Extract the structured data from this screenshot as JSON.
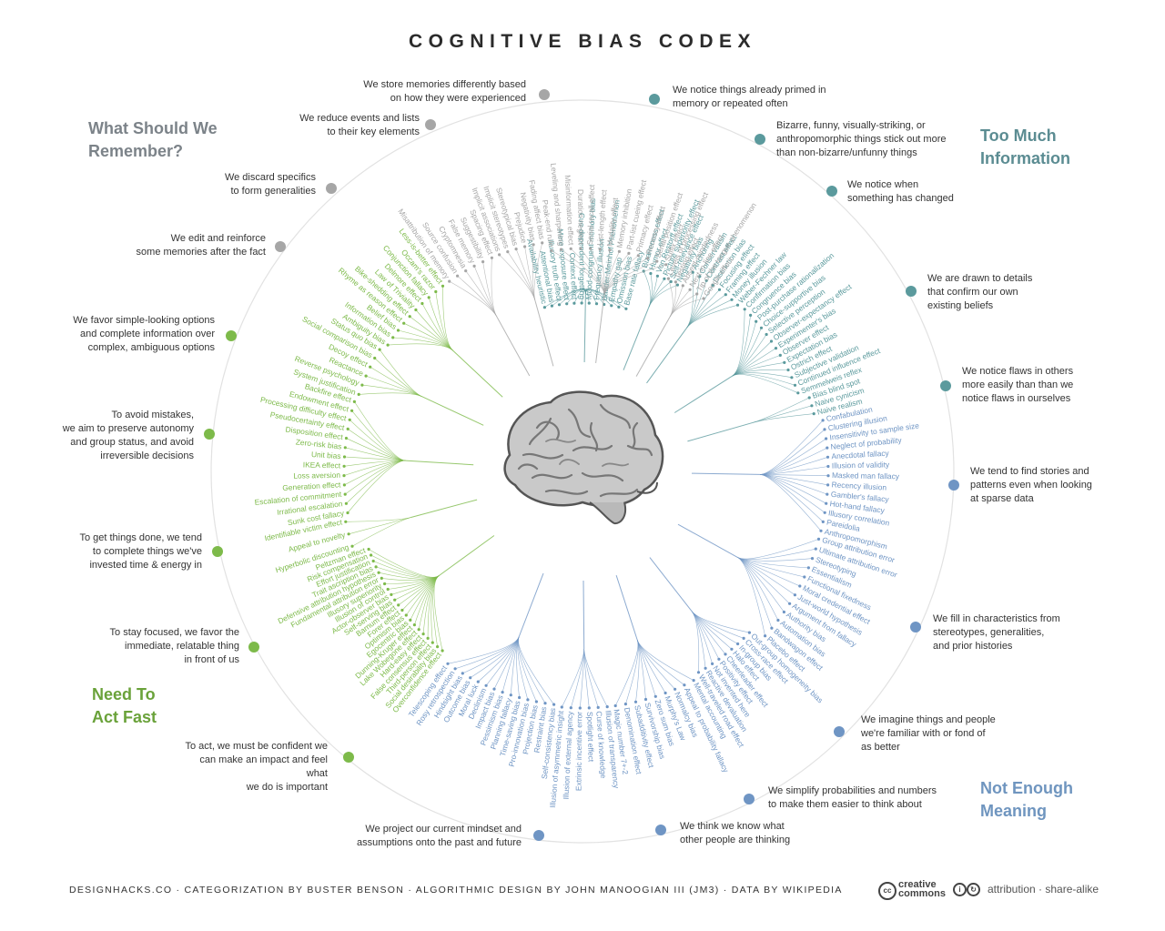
{
  "title": "COGNITIVE BIAS CODEX",
  "quadrant_titles": {
    "remember": "What Should We\nRemember?",
    "too_much": "Too Much\nInformation",
    "act_fast": "Need To\nAct Fast",
    "meaning": "Not Enough\nMeaning"
  },
  "colors": {
    "remember": "#a6a6a6",
    "too_much": "#5b9a9d",
    "meaning": "#6f95c4",
    "act_fast": "#7dba4a"
  },
  "groups": [
    {
      "caption": "We notice things already primed in\nmemory or repeated often",
      "quadrant": "too_much",
      "items": [
        "Availability heuristic",
        "Attentional bias",
        "Illusory truth effect",
        "Mere exposure effect",
        "Context effect",
        "Cue-dependent forgetting",
        "Mood-congruent memory bias",
        "Frequency illusion",
        "Baader-Meinhof Phenomenon",
        "Empathy gap",
        "Omission bias",
        "Base rate fallacy"
      ]
    },
    {
      "caption": "Bizarre, funny, visually-striking, or\nanthropomorphic things stick out more\nthan non-bizarre/unfunny things",
      "quadrant": "too_much",
      "items": [
        "Bizarreness effect",
        "Humor effect",
        "Von Restorff effect",
        "Picture superiority effect",
        "Self-relevance effect",
        "Negativity bias"
      ]
    },
    {
      "caption": "We notice when\nsomething has changed",
      "quadrant": "too_much",
      "items": [
        "Anchoring",
        "Conservatism",
        "Contrast effect",
        "Distinction bias",
        "Focusing effect",
        "Framing effect",
        "Money illusion",
        "Weber-Fechner law"
      ]
    },
    {
      "caption": "We are drawn to details\nthat confirm our own\nexisting beliefs",
      "quadrant": "too_much",
      "items": [
        "Confirmation bias",
        "Congruence bias",
        "Post-purchase rationalization",
        "Choice-supportive bias",
        "Selective perception",
        "Observer-expectancy effect",
        "Experimenter's bias",
        "Observer effect",
        "Expectation bias",
        "Ostrich effect",
        "Subjective validation",
        "Continued influence effect",
        "Semmelweis reflex"
      ]
    },
    {
      "caption": "We notice flaws in others\nmore easily than than we\nnotice flaws in ourselves",
      "quadrant": "too_much",
      "items": [
        "Bias blind spot",
        "Naive cynicism",
        "Naive realism"
      ]
    },
    {
      "caption": "We tend to find stories and\npatterns even when looking\nat sparse data",
      "quadrant": "meaning",
      "items": [
        "Confabulation",
        "Clustering illusion",
        "Insensitivity to sample size",
        "Neglect of probability",
        "Anecdotal fallacy",
        "Illusion of validity",
        "Masked man fallacy",
        "Recency illusion",
        "Gambler's fallacy",
        "Hot-hand fallacy",
        "Illusory correlation",
        "Pareidolia",
        "Anthropomorphism"
      ]
    },
    {
      "caption": "We fill in characteristics from\nstereotypes, generalities,\nand prior histories",
      "quadrant": "meaning",
      "items": [
        "Group attribution error",
        "Ultimate attribution error",
        "Stereotyping",
        "Essentialism",
        "Functional fixedness",
        "Moral credential effect",
        "Just-world hypothesis",
        "Argument from fallacy",
        "Authority bias",
        "Automation bias",
        "Bandwagon effect",
        "Placebo effect"
      ]
    },
    {
      "caption": "We imagine things and people\nwe're familiar with or fond of\nas better",
      "quadrant": "meaning",
      "items": [
        "Out-group homogeneity bias",
        "Cross-race effect",
        "In-group bias",
        "Halo effect",
        "Cheerleader effect",
        "Positivity effect",
        "Not invented here",
        "Reactive devaluation",
        "Well-traveled road effect"
      ]
    },
    {
      "caption": "We simplify probabilities and numbers\nto make them easier to think about",
      "quadrant": "meaning",
      "items": [
        "Mental accounting",
        "Appeal to probability fallacy",
        "Normalcy bias",
        "Murphy's Law",
        "Zero sum bias",
        "Survivorship bias",
        "Subadditivity effect",
        "Denomination effect",
        "Magic number 7+-2"
      ]
    },
    {
      "caption": "We think we know what\nother people are thinking",
      "quadrant": "meaning",
      "items": [
        "Illusion of transparency",
        "Curse of knowledge",
        "Spotlight effect",
        "Extrinsic incentive error",
        "Illusion of external agency",
        "Illusion of asymmetric insight"
      ]
    },
    {
      "caption": "We project our current mindset and\nassumptions onto the past and future",
      "quadrant": "meaning",
      "items": [
        "Self-consistency bias",
        "Restraint bias",
        "Projection bias",
        "Pro-innovation bias",
        "Time-saving bias",
        "Planning fallacy",
        "Pessimism bias",
        "Impact bias",
        "Declinism",
        "Moral luck",
        "Outcome bias",
        "Hindsight bias",
        "Rosy retrospection",
        "Telescoping effect"
      ]
    },
    {
      "caption": "To act, we must be confident we\ncan make an impact and feel what\nwe do is important",
      "quadrant": "act_fast",
      "items": [
        "Overconfidence effect",
        "Social desirability bias",
        "Third-person effect",
        "False consensus effect",
        "Hard-easy effect",
        "Lake Wobegone effect",
        "Dunning-Kruger effect",
        "Egocentric bias",
        "Optimism bias",
        "Forer effect",
        "Barnum effect",
        "Self-serving bias",
        "Actor-observer bias",
        "Illusion of control",
        "Illusory superiority",
        "Fundamental attribution error",
        "Defensive attribution hypothesis",
        "Trait ascription bias",
        "Effort justification",
        "Risk compensation",
        "Peltzman effect"
      ]
    },
    {
      "caption": "To stay focused, we favor the\nimmediate, relatable thing\nin front of us",
      "quadrant": "act_fast",
      "items": [
        "Hyperbolic discounting",
        "Appeal to novelty",
        "Identifiable victim effect"
      ]
    },
    {
      "caption": "To get things done, we tend\nto complete things we've\ninvested time & energy in",
      "quadrant": "act_fast",
      "items": [
        "Sunk cost fallacy",
        "Irrational escalation",
        "Escalation of commitment",
        "Generation effect",
        "Loss aversion",
        "IKEA effect",
        "Unit bias",
        "Zero-risk bias",
        "Disposition effect",
        "Pseudocertainty effect",
        "Processing difficulty effect",
        "Endowment effect",
        "Backfire effect"
      ]
    },
    {
      "caption": "To avoid mistakes,\nwe aim to preserve autonomy\nand group status, and avoid\nirreversible decisions",
      "quadrant": "act_fast",
      "items": [
        "System justification",
        "Reverse psychology",
        "Reactance",
        "Decoy effect",
        "Social comparison bias",
        "Status quo bias"
      ]
    },
    {
      "caption": "We favor simple-looking options\nand complete information over\ncomplex, ambiguous options",
      "quadrant": "act_fast",
      "items": [
        "Ambiguity bias",
        "Information bias",
        "Belief bias",
        "Rhyme as reason effect",
        "Bike-shedding effect",
        "Law of Triviality",
        "Delmore effect",
        "Conjunction fallacy",
        "Occam's razor",
        "Less-is-better effect"
      ]
    },
    {
      "caption": "We edit and reinforce\nsome memories after the fact",
      "quadrant": "remember",
      "items": [
        "Misattribution of memory",
        "Source confusion",
        "Cryptomnesia",
        "False memory",
        "Suggestibility",
        "Spacing effect"
      ]
    },
    {
      "caption": "We discard specifics\nto form generalities",
      "quadrant": "remember",
      "items": [
        "Implicit associations",
        "Implicit stereotypes",
        "Stereotypical bias",
        "Prejudice",
        "Negativity bias",
        "Fading affect bias"
      ]
    },
    {
      "caption": "We reduce events and lists\nto their key elements",
      "quadrant": "remember",
      "items": [
        "Peak-end rule",
        "Leveling and sharpening",
        "Misinformation effect",
        "Duration neglect",
        "Serial recall effect",
        "List-length effect",
        "Modality effect",
        "Memory inhibition",
        "Part-list cueing effect",
        "Primacy effect",
        "Recency effect",
        "Serial position effect",
        "Suffix effect"
      ]
    },
    {
      "caption": "We store memories differently based\non how they were experienced",
      "quadrant": "remember",
      "items": [
        "Levels of processing effect",
        "Testing effect",
        "Absent-mindedness",
        "Next-in-line effect",
        "Tip of the tongue phenomenon",
        "Google effect"
      ]
    }
  ],
  "footer": {
    "credits": "DESIGNHACKS.CO  ·  CATEGORIZATION BY BUSTER BENSON  ·  ALGORITHMIC DESIGN BY JOHN MANOOGIAN III (JM3)  ·  DATA BY WIKIPEDIA",
    "cc_word": "creative\ncommons",
    "license": "attribution · share-alike"
  }
}
